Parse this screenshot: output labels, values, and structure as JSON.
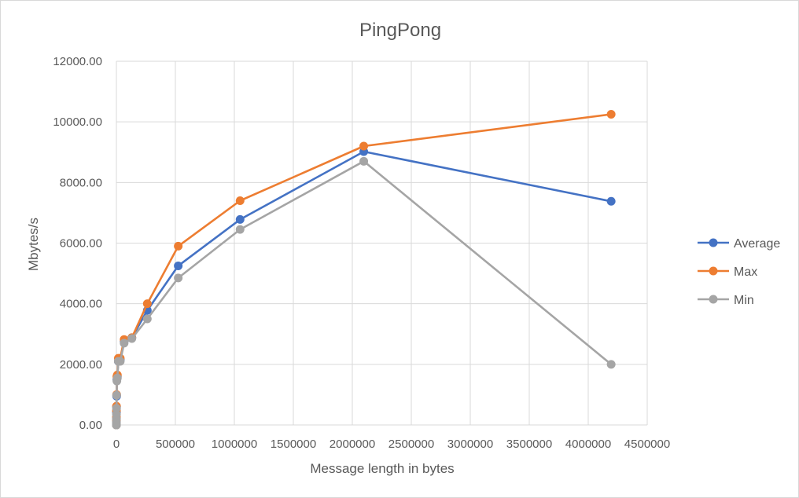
{
  "chart_data": {
    "type": "scatter",
    "title": "PingPong",
    "xlabel": "Message length in bytes",
    "ylabel": "Mbytes/s",
    "xlim": [
      0,
      4500000
    ],
    "ylim": [
      0,
      12000
    ],
    "x_ticks": [
      0,
      500000,
      1000000,
      1500000,
      2000000,
      2500000,
      3000000,
      3500000,
      4000000,
      4500000
    ],
    "x_tick_labels": [
      "0",
      "500000",
      "1000000",
      "1500000",
      "2000000",
      "2500000",
      "3000000",
      "3500000",
      "4000000",
      "4500000"
    ],
    "y_ticks": [
      0,
      2000,
      4000,
      6000,
      8000,
      10000,
      12000
    ],
    "y_tick_labels": [
      "0.00",
      "2000.00",
      "4000.00",
      "6000.00",
      "8000.00",
      "10000.00",
      "12000.00"
    ],
    "grid": true,
    "legend_position": "right",
    "x": [
      0,
      1,
      2,
      4,
      8,
      16,
      32,
      64,
      128,
      256,
      512,
      1024,
      2048,
      4096,
      8192,
      16384,
      32768,
      65536,
      131072,
      262144,
      524288,
      1048576,
      2097152,
      4194304
    ],
    "series": [
      {
        "name": "Average",
        "color": "#4472C4",
        "values": [
          0,
          1,
          2,
          4,
          8,
          16,
          32,
          62,
          120,
          230,
          420,
          600,
          950,
          1500,
          1600,
          2100,
          2150,
          2750,
          2880,
          3780,
          5250,
          6780,
          9020,
          7380
        ]
      },
      {
        "name": "Max",
        "color": "#ED7D31",
        "values": [
          0,
          1,
          3,
          5,
          10,
          20,
          40,
          75,
          140,
          260,
          480,
          620,
          1000,
          1600,
          1650,
          2200,
          2200,
          2820,
          2880,
          4000,
          5900,
          7400,
          9200,
          10250
        ]
      },
      {
        "name": "Min",
        "color": "#A5A5A5",
        "values": [
          0,
          1,
          2,
          3,
          6,
          12,
          25,
          50,
          100,
          200,
          350,
          550,
          980,
          1450,
          1550,
          2100,
          2100,
          2700,
          2850,
          3500,
          4850,
          6450,
          8700,
          2000
        ]
      }
    ]
  }
}
